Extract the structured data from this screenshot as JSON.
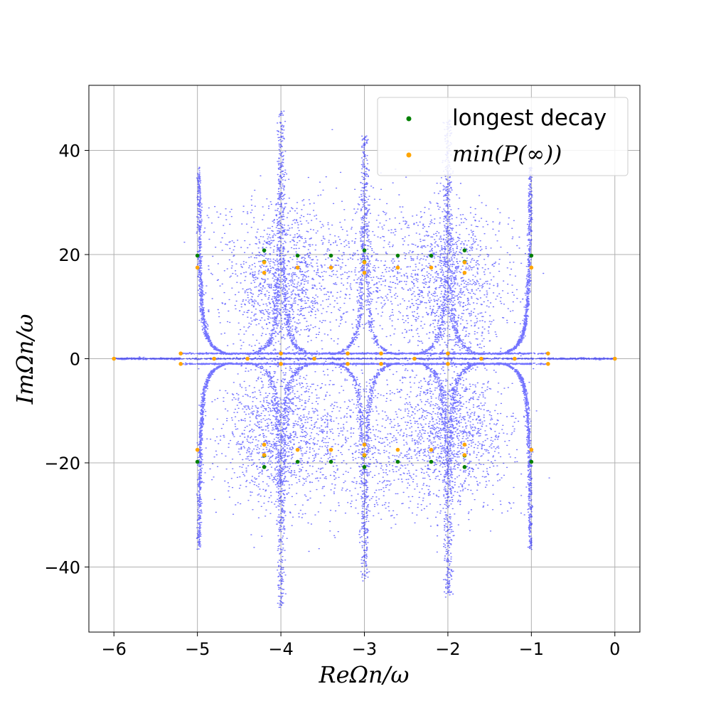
{
  "chart_data": {
    "type": "scatter",
    "xlabel": "ReΩn/ω",
    "ylabel": "ImΩn/ω",
    "xlim": [
      -6.3,
      0.3
    ],
    "ylim": [
      -52.5,
      52.5
    ],
    "x_ticks": [
      -6,
      -5,
      -4,
      -3,
      -2,
      -1,
      0
    ],
    "y_ticks": [
      -40,
      -20,
      0,
      20,
      40
    ],
    "x_tick_labels": [
      "−6",
      "−5",
      "−4",
      "−3",
      "−2",
      "−1",
      "0"
    ],
    "y_tick_labels": [
      "−40",
      "−20",
      "0",
      "20",
      "40"
    ],
    "grid": true,
    "legend_position": "top-right",
    "colors": {
      "spectrum": "#0000ff",
      "longest_decay": "#008000",
      "min_p": "#ffa500",
      "grid": "#b0b0b0"
    },
    "series": [
      {
        "name": "longest decay",
        "points": [
          [
            -5.0,
            19.8
          ],
          [
            -5.0,
            -19.8
          ],
          [
            -4.2,
            20.8
          ],
          [
            -4.2,
            -20.8
          ],
          [
            -4.2,
            18.6
          ],
          [
            -4.2,
            -18.6
          ],
          [
            -3.8,
            19.8
          ],
          [
            -3.8,
            -19.8
          ],
          [
            -3.4,
            19.8
          ],
          [
            -3.4,
            -19.8
          ],
          [
            -3.0,
            20.8
          ],
          [
            -3.0,
            -20.8
          ],
          [
            -3.0,
            18.6
          ],
          [
            -3.0,
            -18.6
          ],
          [
            -2.6,
            19.8
          ],
          [
            -2.6,
            -19.8
          ],
          [
            -2.2,
            19.8
          ],
          [
            -2.2,
            -19.8
          ],
          [
            -1.8,
            20.8
          ],
          [
            -1.8,
            -20.8
          ],
          [
            -1.8,
            18.6
          ],
          [
            -1.8,
            -18.6
          ],
          [
            -1.0,
            19.8
          ],
          [
            -1.0,
            -19.8
          ]
        ]
      },
      {
        "name": "min(P(∞))",
        "points": [
          [
            -5.0,
            17.5
          ],
          [
            -5.0,
            -17.5
          ],
          [
            -4.2,
            18.5
          ],
          [
            -4.2,
            -18.5
          ],
          [
            -4.2,
            16.5
          ],
          [
            -4.2,
            -16.5
          ],
          [
            -3.8,
            17.5
          ],
          [
            -3.8,
            -17.5
          ],
          [
            -3.4,
            17.5
          ],
          [
            -3.4,
            -17.5
          ],
          [
            -3.0,
            18.5
          ],
          [
            -3.0,
            -18.5
          ],
          [
            -3.0,
            16.5
          ],
          [
            -3.0,
            -16.5
          ],
          [
            -2.6,
            17.5
          ],
          [
            -2.6,
            -17.5
          ],
          [
            -2.2,
            17.5
          ],
          [
            -2.2,
            -17.5
          ],
          [
            -1.8,
            18.5
          ],
          [
            -1.8,
            -18.5
          ],
          [
            -1.8,
            16.5
          ],
          [
            -1.8,
            -16.5
          ],
          [
            -1.0,
            17.5
          ],
          [
            -1.0,
            -17.5
          ],
          [
            -6.0,
            0.0
          ],
          [
            -5.2,
            1.0
          ],
          [
            -5.2,
            -1.0
          ],
          [
            -4.8,
            0.0
          ],
          [
            -4.4,
            0.0
          ],
          [
            -4.0,
            1.0
          ],
          [
            -4.0,
            -1.0
          ],
          [
            -3.6,
            0.0
          ],
          [
            -3.2,
            1.0
          ],
          [
            -3.2,
            -1.0
          ],
          [
            -2.8,
            1.0
          ],
          [
            -2.8,
            -1.0
          ],
          [
            -2.4,
            0.0
          ],
          [
            -2.0,
            1.0
          ],
          [
            -2.0,
            -1.0
          ],
          [
            -1.6,
            0.0
          ],
          [
            -1.2,
            0.0
          ],
          [
            -0.8,
            1.0
          ],
          [
            -0.8,
            -1.0
          ],
          [
            0.0,
            0.0
          ]
        ]
      }
    ]
  }
}
